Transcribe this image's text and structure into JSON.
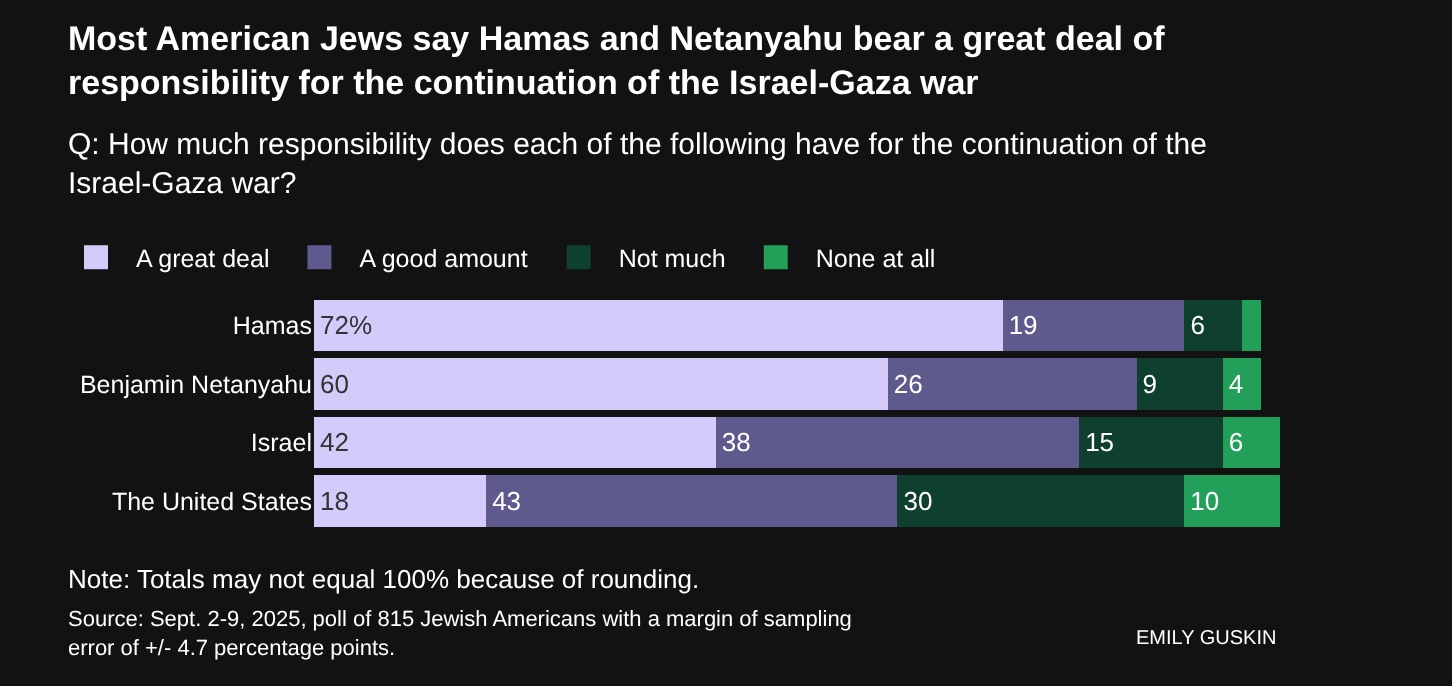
{
  "chart_data": {
    "type": "bar",
    "orientation": "horizontal",
    "stacked": true,
    "title": "Most American Jews say Hamas and Netanyahu bear a great deal of responsibility for the continuation of the Israel-Gaza war",
    "subtitle": "Q: How much responsibility does each of the following have for the continuation of the Israel-Gaza war?",
    "categories": [
      "Hamas",
      "Benjamin Netanyahu",
      "Israel",
      "The United States"
    ],
    "series": [
      {
        "name": "A great deal",
        "color": "#d4cbfb",
        "values": [
          72,
          60,
          42,
          18
        ],
        "value_labels": [
          "72%",
          "60",
          "42",
          "18"
        ]
      },
      {
        "name": "A good amount",
        "color": "#5f5a8e",
        "values": [
          19,
          26,
          38,
          43
        ],
        "value_labels": [
          "19",
          "26",
          "38",
          "43"
        ]
      },
      {
        "name": "Not much",
        "color": "#0f3f2e",
        "values": [
          6,
          9,
          15,
          30
        ],
        "value_labels": [
          "6",
          "9",
          "15",
          "30"
        ]
      },
      {
        "name": "None at all",
        "color": "#22a05a",
        "values": [
          2,
          4,
          6,
          10
        ],
        "value_labels": [
          null,
          "4",
          "6",
          "10"
        ]
      }
    ],
    "legend": "top left",
    "annotations": [
      "Note: Totals may not equal 100% because of rounding.",
      "Source: Sept. 2-9, 2025, poll of 815 Jewish Americans with a margin of sampling error of +/- 4.7 percentage points.",
      "EMILY GUSKIN"
    ]
  }
}
